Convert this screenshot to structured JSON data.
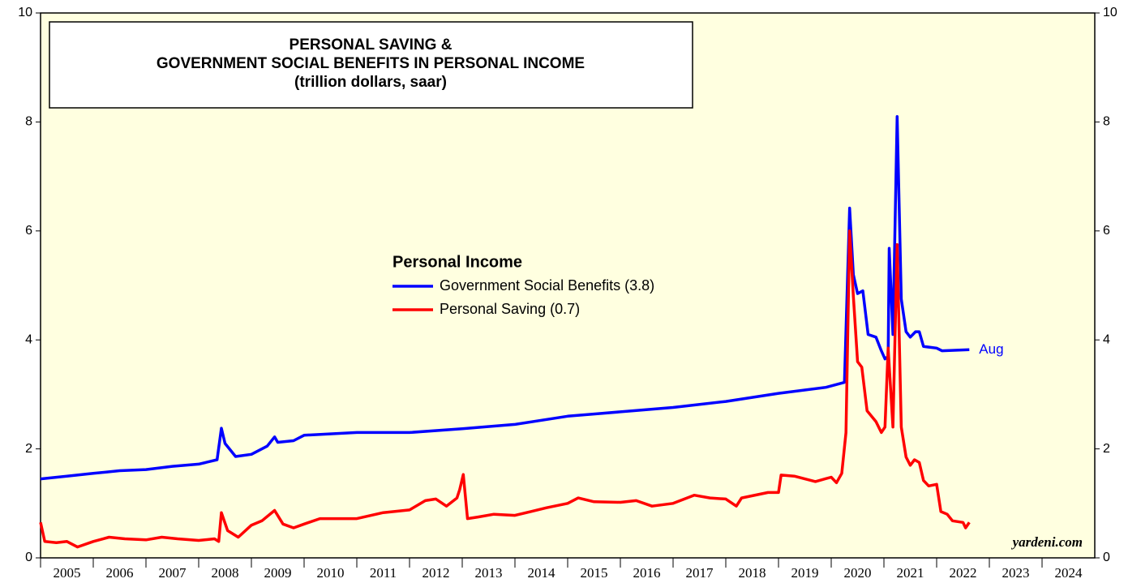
{
  "chart_data": {
    "type": "line",
    "title": [
      "PERSONAL SAVING &",
      "GOVERNMENT SOCIAL BENEFITS IN PERSONAL INCOME",
      "(trillion dollars, saar)"
    ],
    "legend_title": "Personal Income",
    "series": [
      {
        "name": "Government Social Benefits (3.8)",
        "color": "#0000ff",
        "x": [
          2005.0,
          2005.5,
          2006.0,
          2006.5,
          2007.0,
          2007.5,
          2008.0,
          2008.35,
          2008.43,
          2008.5,
          2008.7,
          2009.0,
          2009.3,
          2009.44,
          2009.5,
          2009.8,
          2010.0,
          2011.0,
          2012.0,
          2013.0,
          2014.0,
          2015.0,
          2016.0,
          2017.0,
          2018.0,
          2019.0,
          2019.9,
          2020.25,
          2020.35,
          2020.42,
          2020.5,
          2020.6,
          2020.7,
          2020.85,
          2020.95,
          2021.02,
          2021.08,
          2021.1,
          2021.17,
          2021.25,
          2021.33,
          2021.42,
          2021.5,
          2021.6,
          2021.67,
          2021.75,
          2022.0,
          2022.1,
          2022.62
        ],
        "values": [
          1.45,
          1.5,
          1.55,
          1.6,
          1.62,
          1.68,
          1.72,
          1.8,
          2.38,
          2.1,
          1.86,
          1.9,
          2.05,
          2.22,
          2.12,
          2.15,
          2.25,
          2.3,
          2.3,
          2.37,
          2.45,
          2.6,
          2.68,
          2.76,
          2.87,
          3.02,
          3.13,
          3.22,
          6.42,
          5.2,
          4.85,
          4.9,
          4.1,
          4.05,
          3.8,
          3.65,
          3.7,
          5.68,
          4.1,
          8.1,
          4.75,
          4.15,
          4.05,
          4.15,
          4.15,
          3.88,
          3.85,
          3.8,
          3.82
        ]
      },
      {
        "name": "Personal Saving (0.7)",
        "color": "#ff0000",
        "x": [
          2005.0,
          2005.08,
          2005.3,
          2005.5,
          2005.7,
          2006.0,
          2006.3,
          2006.6,
          2007.0,
          2007.3,
          2007.6,
          2008.0,
          2008.3,
          2008.38,
          2008.43,
          2008.55,
          2008.75,
          2009.0,
          2009.2,
          2009.44,
          2009.6,
          2009.8,
          2010.0,
          2010.3,
          2011.0,
          2011.5,
          2012.0,
          2012.3,
          2012.5,
          2012.7,
          2012.9,
          2012.95,
          2013.02,
          2013.1,
          2013.3,
          2013.6,
          2014.0,
          2014.3,
          2014.6,
          2015.0,
          2015.2,
          2015.5,
          2016.0,
          2016.3,
          2016.6,
          2017.0,
          2017.4,
          2017.7,
          2018.0,
          2018.2,
          2018.3,
          2018.8,
          2019.0,
          2019.05,
          2019.3,
          2019.7,
          2020.0,
          2020.1,
          2020.2,
          2020.28,
          2020.35,
          2020.42,
          2020.5,
          2020.58,
          2020.68,
          2020.85,
          2020.95,
          2021.02,
          2021.08,
          2021.17,
          2021.25,
          2021.33,
          2021.42,
          2021.5,
          2021.58,
          2021.67,
          2021.75,
          2021.85,
          2022.0,
          2022.08,
          2022.2,
          2022.3,
          2022.5,
          2022.55,
          2022.62
        ],
        "values": [
          0.65,
          0.3,
          0.28,
          0.3,
          0.2,
          0.3,
          0.38,
          0.35,
          0.33,
          0.38,
          0.35,
          0.32,
          0.35,
          0.3,
          0.83,
          0.5,
          0.38,
          0.6,
          0.68,
          0.87,
          0.62,
          0.55,
          0.62,
          0.72,
          0.72,
          0.83,
          0.88,
          1.05,
          1.08,
          0.95,
          1.1,
          1.25,
          1.53,
          0.72,
          0.75,
          0.8,
          0.78,
          0.85,
          0.92,
          1.0,
          1.1,
          1.03,
          1.02,
          1.05,
          0.95,
          1.0,
          1.15,
          1.1,
          1.08,
          0.95,
          1.1,
          1.2,
          1.2,
          1.52,
          1.5,
          1.4,
          1.48,
          1.38,
          1.55,
          2.3,
          6.0,
          4.8,
          3.6,
          3.5,
          2.7,
          2.5,
          2.3,
          2.4,
          3.85,
          2.4,
          5.75,
          2.4,
          1.85,
          1.7,
          1.8,
          1.75,
          1.42,
          1.32,
          1.35,
          0.85,
          0.8,
          0.68,
          0.65,
          0.55,
          0.65
        ]
      }
    ],
    "xlim": [
      2005,
      2025
    ],
    "xticks": [
      2005,
      2006,
      2007,
      2008,
      2009,
      2010,
      2011,
      2012,
      2013,
      2014,
      2015,
      2016,
      2017,
      2018,
      2019,
      2020,
      2021,
      2022,
      2023,
      2024
    ],
    "ylim": [
      0,
      10
    ],
    "yticks": [
      0,
      2,
      4,
      6,
      8,
      10
    ],
    "end_label": "Aug",
    "source": "yardeni.com"
  }
}
